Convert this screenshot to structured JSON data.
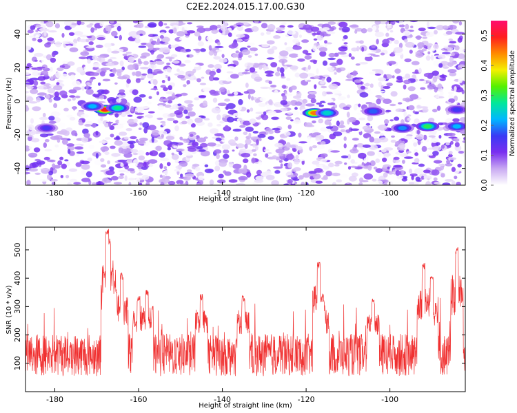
{
  "figure": {
    "title": "C2E2.2024.015.17.00.G30"
  },
  "chart_data": [
    {
      "type": "heatmap",
      "xlabel": "Height of straight line (km)",
      "ylabel": "Frequency (Hz)",
      "xlim": [
        -187,
        -82
      ],
      "ylim": [
        -50,
        48
      ],
      "xticks": [
        -180,
        -160,
        -140,
        -120,
        -100
      ],
      "yticks": [
        -40,
        -20,
        0,
        20,
        40
      ],
      "colorbar": {
        "label": "Normalized spectral amplitude",
        "range": [
          0,
          0.55
        ],
        "ticks": [
          0.0,
          0.1,
          0.2,
          0.3,
          0.4,
          0.5
        ],
        "colors": [
          "#ffffff",
          "#c9a9f2",
          "#7a2ff0",
          "#3a3af5",
          "#00b7ff",
          "#00e89a",
          "#55f000",
          "#f4f000",
          "#ff8a00",
          "#ff1e1e",
          "#ff0d6e"
        ]
      },
      "features": [
        {
          "x": -168,
          "y": -5,
          "value": 0.5
        },
        {
          "x": -165,
          "y": -4,
          "value": 0.28
        },
        {
          "x": -171,
          "y": -3,
          "value": 0.22
        },
        {
          "x": -118,
          "y": -7,
          "value": 0.45
        },
        {
          "x": -115,
          "y": -7,
          "value": 0.25
        },
        {
          "x": -104,
          "y": -6,
          "value": 0.18
        },
        {
          "x": -91,
          "y": -15,
          "value": 0.3
        },
        {
          "x": -97,
          "y": -16,
          "value": 0.2
        },
        {
          "x": -84,
          "y": -15,
          "value": 0.22
        },
        {
          "x": -84,
          "y": -5,
          "value": 0.16
        },
        {
          "x": -182,
          "y": -16,
          "value": 0.15
        }
      ]
    },
    {
      "type": "line",
      "xlabel": "Height of straight line (km)",
      "ylabel": "SNR (10 * v/v)",
      "xlim": [
        -187,
        -82
      ],
      "ylim": [
        0,
        580
      ],
      "xticks": [
        -180,
        -160,
        -140,
        -120,
        -100
      ],
      "yticks": [
        100,
        200,
        300,
        400,
        500
      ],
      "color": "#f03030",
      "baseline_mean": 130,
      "peaks": [
        {
          "x": -167.5,
          "y": 575
        },
        {
          "x": -167,
          "y": 540
        },
        {
          "x": -164,
          "y": 420
        },
        {
          "x": -165.5,
          "y": 370
        },
        {
          "x": -117,
          "y": 460
        },
        {
          "x": -116,
          "y": 340
        },
        {
          "x": -92,
          "y": 455
        },
        {
          "x": -84,
          "y": 510
        },
        {
          "x": -90,
          "y": 410
        },
        {
          "x": -104,
          "y": 330
        },
        {
          "x": -145,
          "y": 345
        },
        {
          "x": -135,
          "y": 340
        },
        {
          "x": -158,
          "y": 360
        },
        {
          "x": -160,
          "y": 340
        }
      ]
    }
  ]
}
